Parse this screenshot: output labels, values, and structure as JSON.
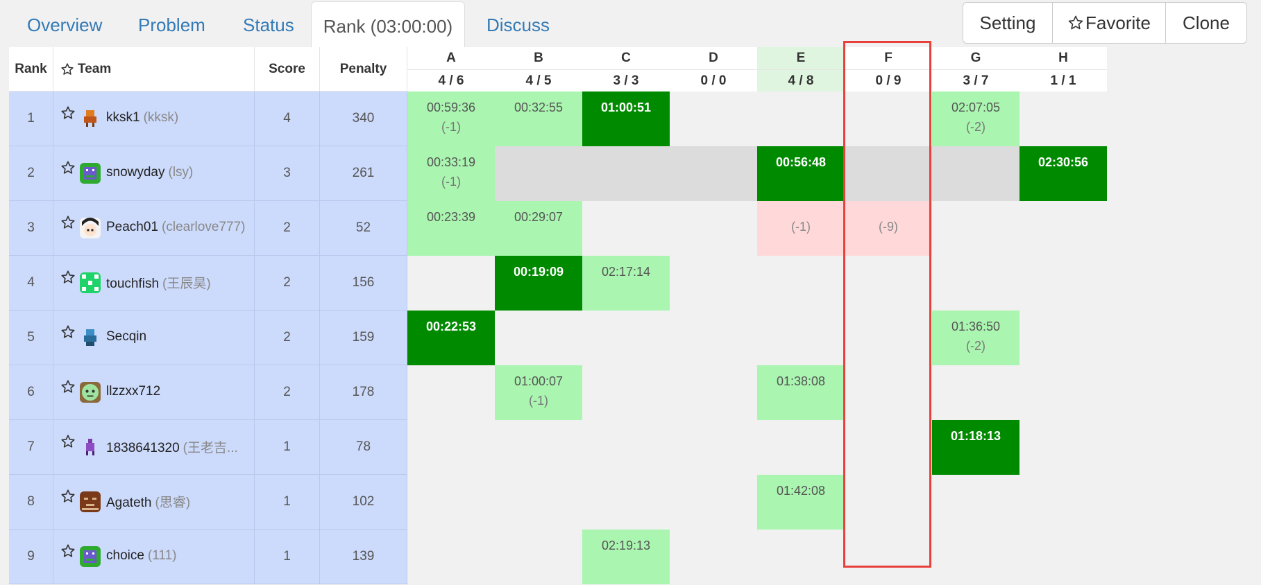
{
  "nav": {
    "tabs": [
      "Overview",
      "Problem",
      "Status",
      "Rank (03:00:00)",
      "Discuss"
    ],
    "active_tab": "Rank (03:00:00)",
    "buttons": {
      "setting": "Setting",
      "favorite": "Favorite",
      "clone": "Clone"
    }
  },
  "table": {
    "headers": {
      "rank": "Rank",
      "team": "Team",
      "score": "Score",
      "penalty": "Penalty"
    },
    "problems": [
      {
        "letter": "A",
        "ratio": "4 / 6"
      },
      {
        "letter": "B",
        "ratio": "4 / 5"
      },
      {
        "letter": "C",
        "ratio": "3 / 3"
      },
      {
        "letter": "D",
        "ratio": "0 / 0"
      },
      {
        "letter": "E",
        "ratio": "4 / 8"
      },
      {
        "letter": "F",
        "ratio": "0 / 9"
      },
      {
        "letter": "G",
        "ratio": "3 / 7"
      },
      {
        "letter": "H",
        "ratio": "1 / 1"
      }
    ],
    "highlighted_problem": "F",
    "rows": [
      {
        "rank": "1",
        "name": "kksk1",
        "nick": "(kksk)",
        "avatar": "pixel-figure-orange",
        "score": "4",
        "penalty": "340",
        "cells": [
          {
            "status": "ac",
            "time": "00:59:36",
            "penalty": "(-1)"
          },
          {
            "status": "ac",
            "time": "00:32:55",
            "penalty": ""
          },
          {
            "status": "first",
            "time": "01:00:51",
            "penalty": ""
          },
          {
            "status": "none",
            "time": "",
            "penalty": ""
          },
          {
            "status": "none",
            "time": "",
            "penalty": ""
          },
          {
            "status": "none",
            "time": "",
            "penalty": ""
          },
          {
            "status": "ac",
            "time": "02:07:05",
            "penalty": "(-2)"
          },
          {
            "status": "none",
            "time": "",
            "penalty": ""
          }
        ]
      },
      {
        "rank": "2",
        "name": "snowyday",
        "nick": "(lsy)",
        "avatar": "pixel-robot-green",
        "score": "3",
        "penalty": "261",
        "cells": [
          {
            "status": "ac",
            "time": "00:33:19",
            "penalty": "(-1)"
          },
          {
            "status": "frozen",
            "time": "",
            "penalty": ""
          },
          {
            "status": "frozen",
            "time": "",
            "penalty": ""
          },
          {
            "status": "frozen",
            "time": "",
            "penalty": ""
          },
          {
            "status": "first",
            "time": "00:56:48",
            "penalty": ""
          },
          {
            "status": "frozen",
            "time": "",
            "penalty": ""
          },
          {
            "status": "frozen",
            "time": "",
            "penalty": ""
          },
          {
            "status": "first",
            "time": "02:30:56",
            "penalty": ""
          }
        ]
      },
      {
        "rank": "3",
        "name": "Peach01",
        "nick": "(clearlove777)",
        "avatar": "anime-face",
        "score": "2",
        "penalty": "52",
        "cells": [
          {
            "status": "ac",
            "time": "00:23:39",
            "penalty": ""
          },
          {
            "status": "ac",
            "time": "00:29:07",
            "penalty": ""
          },
          {
            "status": "none",
            "time": "",
            "penalty": ""
          },
          {
            "status": "none",
            "time": "",
            "penalty": ""
          },
          {
            "status": "wa",
            "time": "",
            "penalty": "(-1)"
          },
          {
            "status": "wa",
            "time": "",
            "penalty": "(-9)"
          },
          {
            "status": "none",
            "time": "",
            "penalty": ""
          },
          {
            "status": "none",
            "time": "",
            "penalty": ""
          }
        ]
      },
      {
        "rank": "4",
        "name": "touchfish",
        "nick": "(王辰昊)",
        "avatar": "pixel-pattern-green",
        "score": "2",
        "penalty": "156",
        "cells": [
          {
            "status": "none",
            "time": "",
            "penalty": ""
          },
          {
            "status": "first",
            "time": "00:19:09",
            "penalty": ""
          },
          {
            "status": "ac",
            "time": "02:17:14",
            "penalty": ""
          },
          {
            "status": "none",
            "time": "",
            "penalty": ""
          },
          {
            "status": "none",
            "time": "",
            "penalty": ""
          },
          {
            "status": "none",
            "time": "",
            "penalty": ""
          },
          {
            "status": "none",
            "time": "",
            "penalty": ""
          },
          {
            "status": "none",
            "time": "",
            "penalty": ""
          }
        ]
      },
      {
        "rank": "5",
        "name": "Secqin",
        "nick": "",
        "avatar": "pixel-figure-blue",
        "score": "2",
        "penalty": "159",
        "cells": [
          {
            "status": "first",
            "time": "00:22:53",
            "penalty": ""
          },
          {
            "status": "none",
            "time": "",
            "penalty": ""
          },
          {
            "status": "none",
            "time": "",
            "penalty": ""
          },
          {
            "status": "none",
            "time": "",
            "penalty": ""
          },
          {
            "status": "none",
            "time": "",
            "penalty": ""
          },
          {
            "status": "none",
            "time": "",
            "penalty": ""
          },
          {
            "status": "ac",
            "time": "01:36:50",
            "penalty": "(-2)"
          },
          {
            "status": "none",
            "time": "",
            "penalty": ""
          }
        ]
      },
      {
        "rank": "6",
        "name": "llzzxx712",
        "nick": "",
        "avatar": "cartoon-face-green",
        "score": "2",
        "penalty": "178",
        "cells": [
          {
            "status": "none",
            "time": "",
            "penalty": ""
          },
          {
            "status": "ac",
            "time": "01:00:07",
            "penalty": "(-1)"
          },
          {
            "status": "none",
            "time": "",
            "penalty": ""
          },
          {
            "status": "none",
            "time": "",
            "penalty": ""
          },
          {
            "status": "ac",
            "time": "01:38:08",
            "penalty": ""
          },
          {
            "status": "none",
            "time": "",
            "penalty": ""
          },
          {
            "status": "none",
            "time": "",
            "penalty": ""
          },
          {
            "status": "none",
            "time": "",
            "penalty": ""
          }
        ]
      },
      {
        "rank": "7",
        "name": "1838641320",
        "nick": "(王老吉...",
        "avatar": "pixel-figure-purple",
        "score": "1",
        "penalty": "78",
        "cells": [
          {
            "status": "none",
            "time": "",
            "penalty": ""
          },
          {
            "status": "none",
            "time": "",
            "penalty": ""
          },
          {
            "status": "none",
            "time": "",
            "penalty": ""
          },
          {
            "status": "none",
            "time": "",
            "penalty": ""
          },
          {
            "status": "none",
            "time": "",
            "penalty": ""
          },
          {
            "status": "none",
            "time": "",
            "penalty": ""
          },
          {
            "status": "first",
            "time": "01:18:13",
            "penalty": ""
          },
          {
            "status": "none",
            "time": "",
            "penalty": ""
          }
        ]
      },
      {
        "rank": "8",
        "name": "Agateth",
        "nick": "(思睿)",
        "avatar": "pixel-face-brown",
        "score": "1",
        "penalty": "102",
        "cells": [
          {
            "status": "none",
            "time": "",
            "penalty": ""
          },
          {
            "status": "none",
            "time": "",
            "penalty": ""
          },
          {
            "status": "none",
            "time": "",
            "penalty": ""
          },
          {
            "status": "none",
            "time": "",
            "penalty": ""
          },
          {
            "status": "ac",
            "time": "01:42:08",
            "penalty": ""
          },
          {
            "status": "none",
            "time": "",
            "penalty": ""
          },
          {
            "status": "none",
            "time": "",
            "penalty": ""
          },
          {
            "status": "none",
            "time": "",
            "penalty": ""
          }
        ]
      },
      {
        "rank": "9",
        "name": "choice",
        "nick": "(111)",
        "avatar": "pixel-robot-green",
        "score": "1",
        "penalty": "139",
        "cells": [
          {
            "status": "none",
            "time": "",
            "penalty": ""
          },
          {
            "status": "none",
            "time": "",
            "penalty": ""
          },
          {
            "status": "ac",
            "time": "02:19:13",
            "penalty": ""
          },
          {
            "status": "none",
            "time": "",
            "penalty": ""
          },
          {
            "status": "none",
            "time": "",
            "penalty": ""
          },
          {
            "status": "none",
            "time": "",
            "penalty": ""
          },
          {
            "status": "none",
            "time": "",
            "penalty": ""
          },
          {
            "status": "none",
            "time": "",
            "penalty": ""
          }
        ]
      }
    ]
  },
  "colors": {
    "accepted": "#aaf5b0",
    "first_blood": "#008a00",
    "wrong": "#ffd9d9",
    "frozen": "#dcdcdc",
    "row_bg": "#ccdafb",
    "highlight_border": "#e8413c",
    "link": "#337ab7"
  }
}
